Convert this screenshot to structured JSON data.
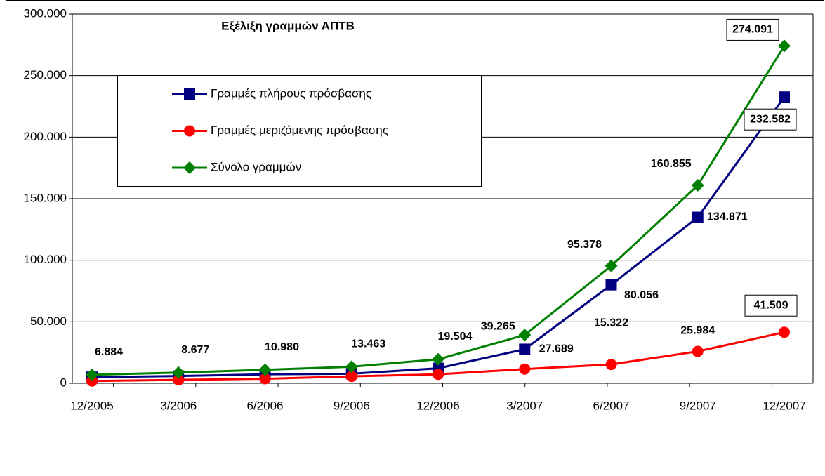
{
  "chart_data": {
    "type": "line",
    "title": "Εξέλιξη γραμμών ΑΠΤΒ",
    "categories": [
      "12/2005",
      "3/2006",
      "6/2006",
      "9/2006",
      "12/2006",
      "3/2007",
      "6/2007",
      "9/2007",
      "12/2007"
    ],
    "series": [
      {
        "name": "Γραμμές πλήρους πρόσβασης",
        "color": "#000080",
        "marker": "square",
        "values": [
          5000,
          5900,
          7300,
          7800,
          12200,
          27689,
          80056,
          134871,
          232582
        ],
        "value_labels": [
          null,
          null,
          null,
          null,
          null,
          "27.689",
          "80.056",
          "134.871",
          "232.582"
        ]
      },
      {
        "name": "Γραμμές μεριζόμενης πρόσβασης",
        "color": "#ff0000",
        "marker": "circle",
        "values": [
          1884,
          2777,
          3680,
          5663,
          7304,
          11576,
          15322,
          25984,
          41509
        ],
        "value_labels": [
          null,
          null,
          null,
          null,
          null,
          null,
          "15.322",
          "25.984",
          "41.509"
        ]
      },
      {
        "name": "Σύνολο γραμμών",
        "color": "#008000",
        "marker": "diamond",
        "values": [
          6884,
          8677,
          10980,
          13463,
          19504,
          39265,
          95378,
          160855,
          274091
        ],
        "value_labels": [
          "6.884",
          "8.677",
          "10.980",
          "13.463",
          "19.504",
          "39.265",
          "95.378",
          "160.855",
          "274.091"
        ]
      }
    ],
    "ylim": [
      0,
      300000
    ],
    "yticks": [
      0,
      {
        "value": 50000,
        "label": "50.000"
      },
      {
        "value": 100000,
        "label": "100.000"
      },
      {
        "value": 150000,
        "label": "150.000"
      },
      {
        "value": 200000,
        "label": "200.000"
      },
      {
        "value": 250000,
        "label": "250.000"
      },
      {
        "value": 300000,
        "label": "300.000"
      }
    ],
    "grid": true
  }
}
